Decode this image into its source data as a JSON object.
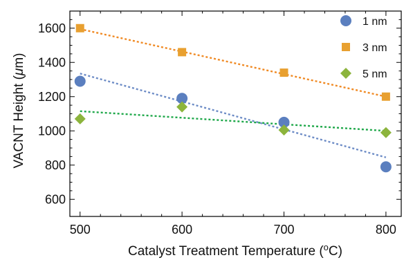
{
  "chart_data": {
    "type": "scatter",
    "xlabel": {
      "main": "Catalyst Treatment Temperature (",
      "sup": "o",
      "tail": "C)"
    },
    "ylabel": {
      "main": "VACNT Height (",
      "greek": "μ",
      "tail": "m)"
    },
    "xlim": [
      490,
      815
    ],
    "ylim": [
      500,
      1700
    ],
    "xticks": [
      500,
      600,
      700,
      800
    ],
    "yticks": [
      600,
      800,
      1000,
      1200,
      1400,
      1600
    ],
    "legend_position": "top-right",
    "series": [
      {
        "name": "1 nm",
        "marker": "circle",
        "color": "#5b7fbf",
        "x": [
          500,
          600,
          700,
          800
        ],
        "y": [
          1290,
          1190,
          1050,
          790
        ],
        "fit": {
          "x": [
            500,
            800
          ],
          "y": [
            1335,
            845
          ],
          "color": "#6d8cc6"
        }
      },
      {
        "name": "3 nm",
        "marker": "square",
        "color": "#e8a030",
        "x": [
          500,
          600,
          700,
          800
        ],
        "y": [
          1600,
          1460,
          1340,
          1200
        ],
        "fit": {
          "x": [
            500,
            800
          ],
          "y": [
            1595,
            1200
          ],
          "color": "#f08a24"
        }
      },
      {
        "name": "5 nm",
        "marker": "diamond",
        "color": "#8cb43c",
        "x": [
          500,
          600,
          700,
          800
        ],
        "y": [
          1070,
          1140,
          1005,
          990
        ],
        "fit": {
          "x": [
            500,
            800
          ],
          "y": [
            1115,
            1000
          ],
          "color": "#1fa84a"
        }
      }
    ]
  }
}
